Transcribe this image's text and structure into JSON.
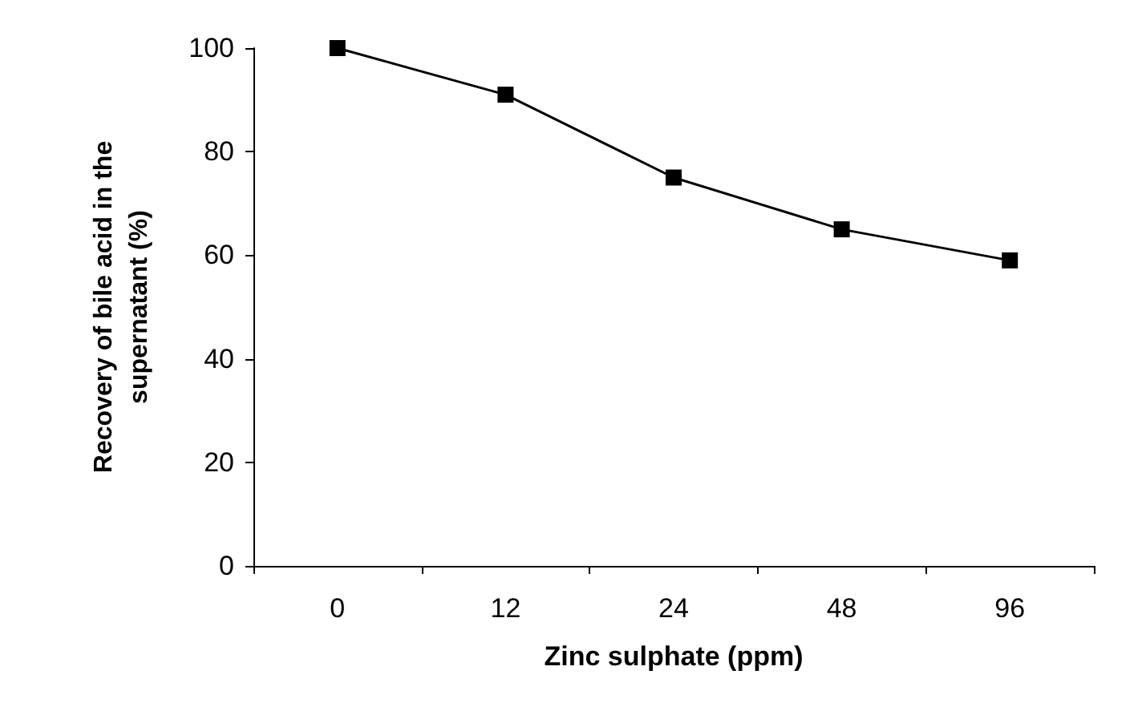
{
  "chart_data": {
    "type": "line",
    "xlabel": "Zinc sulphate (ppm)",
    "ylabel": "Recovery of bile acid in the\nsupernatant (%)",
    "categories": [
      "0",
      "12",
      "24",
      "48",
      "96"
    ],
    "series": [
      {
        "color": "#000000",
        "values": [
          100,
          91,
          75,
          65,
          59
        ]
      }
    ],
    "ylim": [
      0,
      100
    ],
    "yticks": [
      0,
      20,
      40,
      60,
      80,
      100
    ],
    "grid": false,
    "marker": "square",
    "line_style": "solid"
  }
}
